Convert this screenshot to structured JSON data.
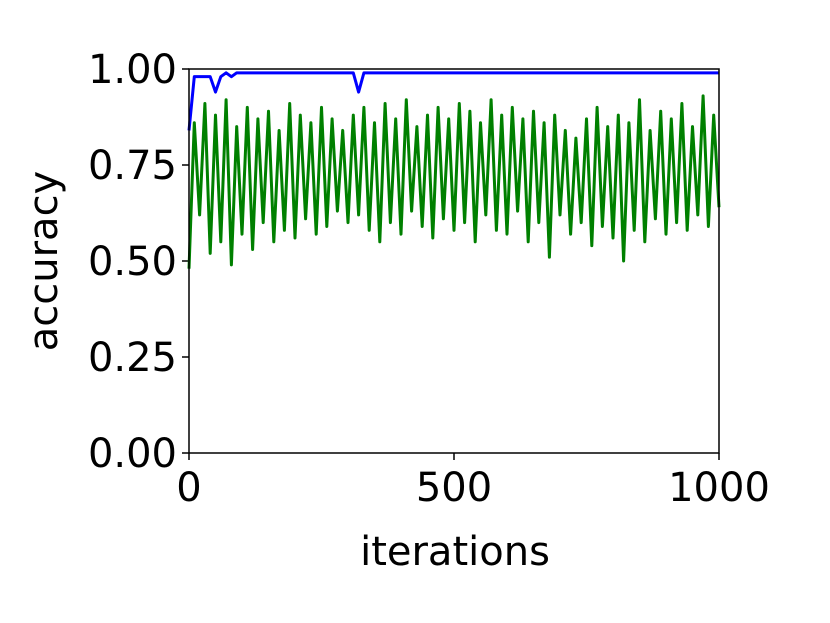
{
  "chart_data": {
    "type": "line",
    "xlabel": "iterations",
    "ylabel": "accuracy",
    "x": [
      0,
      10,
      20,
      30,
      40,
      50,
      60,
      70,
      80,
      90,
      100,
      110,
      120,
      130,
      140,
      150,
      160,
      170,
      180,
      190,
      200,
      210,
      220,
      230,
      240,
      250,
      260,
      270,
      280,
      290,
      300,
      310,
      320,
      330,
      340,
      350,
      360,
      370,
      380,
      390,
      400,
      410,
      420,
      430,
      440,
      450,
      460,
      470,
      480,
      490,
      500,
      510,
      520,
      530,
      540,
      550,
      560,
      570,
      580,
      590,
      600,
      610,
      620,
      630,
      640,
      650,
      660,
      670,
      680,
      690,
      700,
      710,
      720,
      730,
      740,
      750,
      760,
      770,
      780,
      790,
      800,
      810,
      820,
      830,
      840,
      850,
      860,
      870,
      880,
      890,
      900,
      910,
      920,
      930,
      940,
      950,
      960,
      970,
      980,
      990,
      1000
    ],
    "series": [
      {
        "color": "#0000ff",
        "values": [
          0.84,
          0.98,
          0.98,
          0.98,
          0.98,
          0.94,
          0.98,
          0.99,
          0.98,
          0.99,
          0.99,
          0.99,
          0.99,
          0.99,
          0.99,
          0.99,
          0.99,
          0.99,
          0.99,
          0.99,
          0.99,
          0.99,
          0.99,
          0.99,
          0.99,
          0.99,
          0.99,
          0.99,
          0.99,
          0.99,
          0.99,
          0.99,
          0.94,
          0.99,
          0.99,
          0.99,
          0.99,
          0.99,
          0.99,
          0.99,
          0.99,
          0.99,
          0.99,
          0.99,
          0.99,
          0.99,
          0.99,
          0.99,
          0.99,
          0.99,
          0.99,
          0.99,
          0.99,
          0.99,
          0.99,
          0.99,
          0.99,
          0.99,
          0.99,
          0.99,
          0.99,
          0.99,
          0.99,
          0.99,
          0.99,
          0.99,
          0.99,
          0.99,
          0.99,
          0.99,
          0.99,
          0.99,
          0.99,
          0.99,
          0.99,
          0.99,
          0.99,
          0.99,
          0.99,
          0.99,
          0.99,
          0.99,
          0.99,
          0.99,
          0.99,
          0.99,
          0.99,
          0.99,
          0.99,
          0.99,
          0.99,
          0.99,
          0.99,
          0.99,
          0.99,
          0.99,
          0.99,
          0.99,
          0.99,
          0.99,
          0.99
        ]
      },
      {
        "color": "#008000",
        "values": [
          0.48,
          0.86,
          0.62,
          0.91,
          0.52,
          0.88,
          0.55,
          0.92,
          0.49,
          0.85,
          0.57,
          0.9,
          0.53,
          0.87,
          0.6,
          0.89,
          0.55,
          0.84,
          0.58,
          0.91,
          0.56,
          0.88,
          0.61,
          0.86,
          0.57,
          0.9,
          0.59,
          0.87,
          0.63,
          0.84,
          0.6,
          0.88,
          0.62,
          0.9,
          0.58,
          0.86,
          0.55,
          0.91,
          0.6,
          0.87,
          0.57,
          0.92,
          0.63,
          0.85,
          0.59,
          0.88,
          0.56,
          0.9,
          0.61,
          0.87,
          0.58,
          0.91,
          0.6,
          0.89,
          0.55,
          0.86,
          0.62,
          0.92,
          0.58,
          0.88,
          0.57,
          0.9,
          0.63,
          0.87,
          0.55,
          0.89,
          0.6,
          0.86,
          0.51,
          0.88,
          0.62,
          0.84,
          0.57,
          0.82,
          0.6,
          0.87,
          0.54,
          0.9,
          0.59,
          0.85,
          0.56,
          0.88,
          0.5,
          0.86,
          0.58,
          0.92,
          0.55,
          0.84,
          0.61,
          0.89,
          0.57,
          0.87,
          0.6,
          0.91,
          0.58,
          0.85,
          0.62,
          0.93,
          0.59,
          0.88,
          0.64
        ]
      }
    ],
    "xlim": [
      0,
      1000
    ],
    "xticks": [
      0,
      500,
      1000
    ],
    "ylim": [
      0,
      1
    ],
    "yticks": [
      {
        "value": 0,
        "label": "0.00"
      },
      {
        "value": 0.25,
        "label": "0.25"
      },
      {
        "value": 0.5,
        "label": "0.50"
      },
      {
        "value": 0.75,
        "label": "0.75"
      },
      {
        "value": 1,
        "label": "1.00"
      }
    ]
  }
}
